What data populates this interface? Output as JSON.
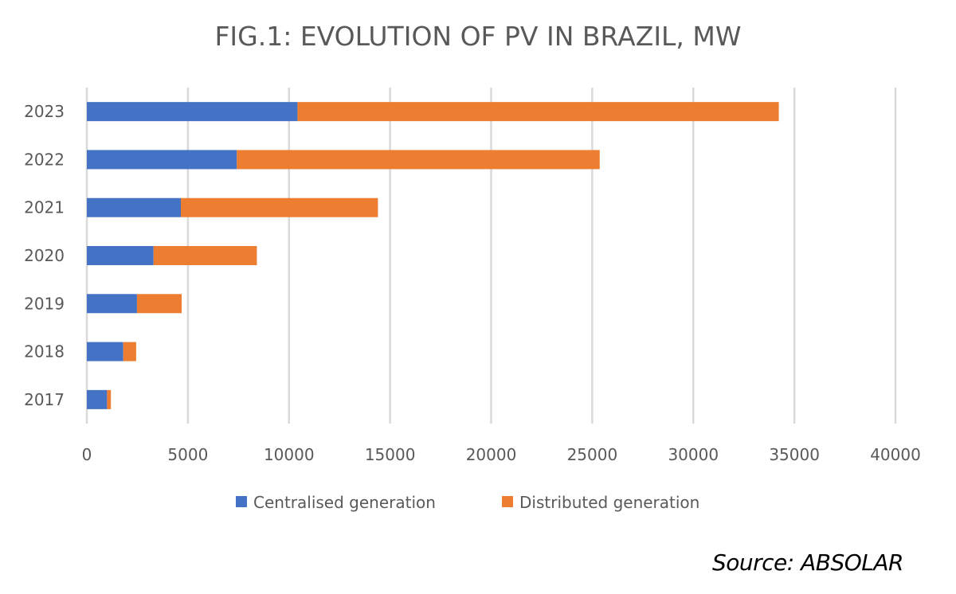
{
  "chart_data": {
    "type": "bar",
    "orientation": "horizontal",
    "stacked": true,
    "title": "FIG.1: EVOLUTION OF PV IN BRAZIL, MW",
    "categories": [
      "2017",
      "2018",
      "2019",
      "2020",
      "2021",
      "2022",
      "2023"
    ],
    "series": [
      {
        "name": "Centralised generation",
        "color": "#4472C4",
        "values": [
          1000,
          1800,
          2480,
          3300,
          4650,
          7420,
          10420
        ]
      },
      {
        "name": "Distributed generation",
        "color": "#ED7D31",
        "values": [
          190,
          640,
          2210,
          5110,
          9750,
          17950,
          23810
        ]
      }
    ],
    "xlim": [
      0,
      40000
    ],
    "xticks": [
      "0",
      "5000",
      "10000",
      "15000",
      "20000",
      "25000",
      "30000",
      "35000",
      "40000"
    ],
    "xtick_values": [
      0,
      5000,
      10000,
      15000,
      20000,
      25000,
      30000,
      35000,
      40000
    ],
    "grid": true,
    "legend": "bottom",
    "xlabel": "",
    "ylabel": ""
  },
  "source": "Source: ABSOLAR"
}
